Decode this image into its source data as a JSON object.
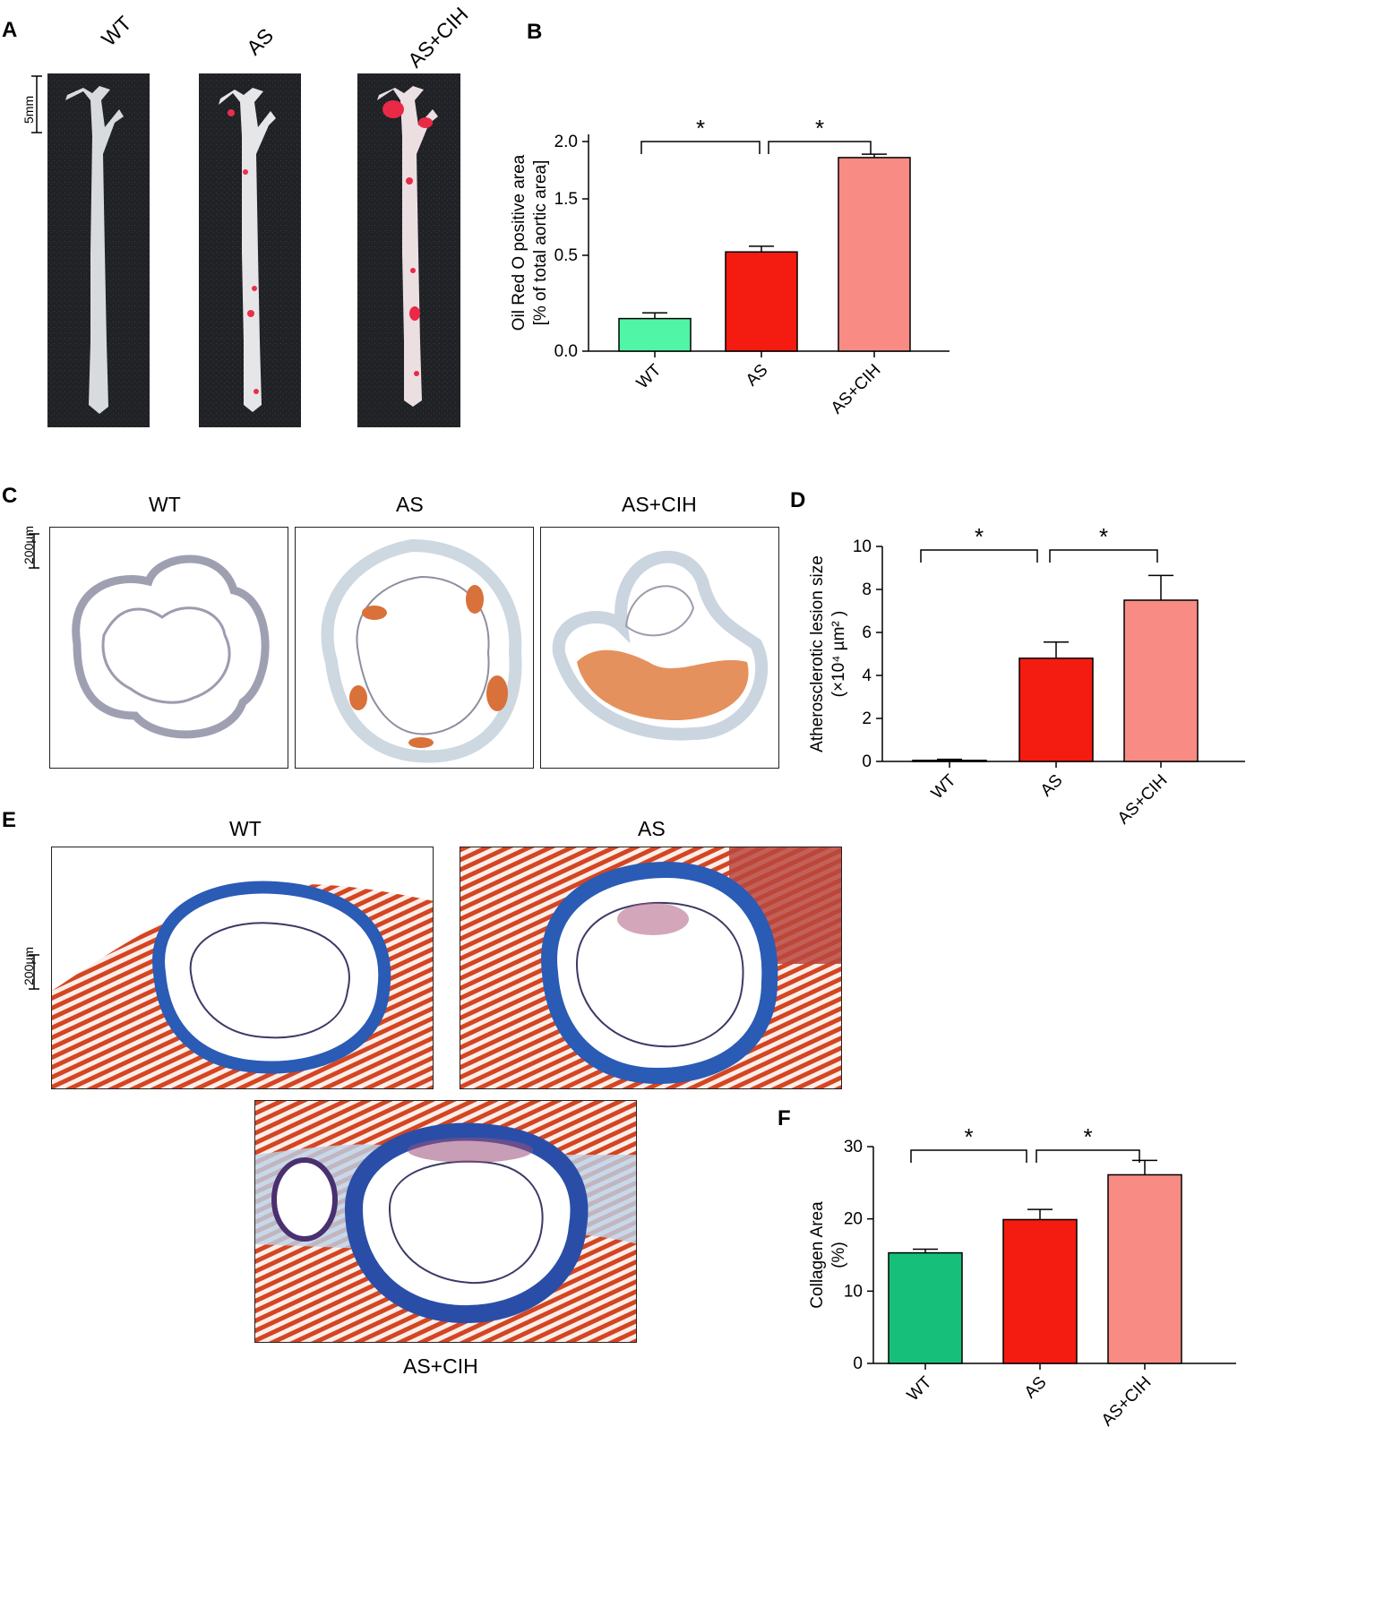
{
  "figure": {
    "panel_labels": [
      "A",
      "B",
      "C",
      "D",
      "E",
      "F"
    ],
    "groups": [
      "WT",
      "AS",
      "AS+CIH"
    ],
    "panel_a": {
      "scale_bar": "5mm"
    },
    "panel_c": {
      "scale_bar": "200µm"
    },
    "panel_e": {
      "scale_bar": "200µm"
    },
    "colors": {
      "WT_b": "#50f5a5",
      "AS": "#f41b10",
      "AS_CIH": "#f98b85",
      "WT_f": "#16c07b",
      "WT_d": "#0d8a4d"
    }
  },
  "chart_data": [
    {
      "panel": "B",
      "type": "bar",
      "categories": [
        "WT",
        "AS",
        "AS+CIH"
      ],
      "values": [
        0.17,
        0.56,
        1.86
      ],
      "errors": [
        0.03,
        0.1,
        0.03
      ],
      "ylabel_line1": "Oil Red O positive area",
      "ylabel_line2": "[% of total aortic area]",
      "yticks": [
        "0.0",
        "0.5",
        "1.5",
        "2.0"
      ],
      "significance": [
        "*",
        "*"
      ],
      "broken_axis": true
    },
    {
      "panel": "D",
      "type": "bar",
      "categories": [
        "WT",
        "AS",
        "AS+CIH"
      ],
      "values": [
        0.05,
        4.8,
        7.5
      ],
      "errors": [
        0.05,
        0.75,
        1.15
      ],
      "ylabel_line1": "Atherosclerotic lesion size",
      "ylabel_line2": "(×10⁴ µm² )",
      "yticks": [
        "0",
        "2",
        "4",
        "6",
        "8",
        "10"
      ],
      "ylim": [
        0,
        10
      ],
      "significance": [
        "*",
        "*"
      ]
    },
    {
      "panel": "F",
      "type": "bar",
      "categories": [
        "WT",
        "AS",
        "AS+CIH"
      ],
      "values": [
        15.3,
        19.9,
        26.1
      ],
      "errors": [
        0.5,
        1.4,
        2.0
      ],
      "ylabel_line1": "Collagen Area",
      "ylabel_line2": "(%)",
      "yticks": [
        "0",
        "10",
        "20",
        "30"
      ],
      "ylim": [
        0,
        30
      ],
      "significance": [
        "*",
        "*"
      ]
    }
  ]
}
